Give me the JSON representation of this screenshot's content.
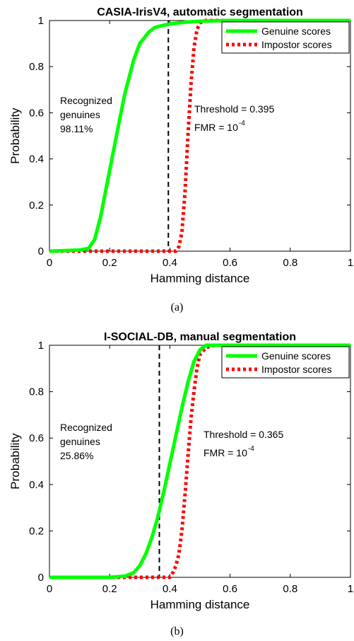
{
  "chart_data": [
    {
      "type": "line",
      "title": "CASIA-IrisV4, automatic segmentation",
      "xlabel": "Hamming distance",
      "ylabel": "Probability",
      "xlim": [
        0,
        1
      ],
      "ylim": [
        0,
        1
      ],
      "xticks": [
        "0",
        "0.2",
        "0.4",
        "0.6",
        "0.8",
        "1"
      ],
      "yticks": [
        "0",
        "0.2",
        "0.4",
        "0.6",
        "0.8",
        "1"
      ],
      "grid": false,
      "legend_position": "top-right",
      "series": [
        {
          "name": "Genuine scores",
          "color": "#00ff00",
          "style": "solid",
          "x": [
            0.0,
            0.05,
            0.1,
            0.13,
            0.15,
            0.17,
            0.2,
            0.23,
            0.25,
            0.28,
            0.3,
            0.33,
            0.35,
            0.38,
            0.4,
            0.45,
            0.5,
            0.6,
            1.0
          ],
          "y": [
            0.0,
            0.002,
            0.005,
            0.012,
            0.05,
            0.15,
            0.35,
            0.55,
            0.68,
            0.83,
            0.9,
            0.95,
            0.97,
            0.98,
            0.985,
            0.993,
            0.997,
            1.0,
            1.0
          ]
        },
        {
          "name": "Impostor scores",
          "color": "#ff0000",
          "style": "dotted",
          "x": [
            0.0,
            0.42,
            0.43,
            0.44,
            0.45,
            0.46,
            0.47,
            0.48,
            0.49,
            0.5,
            0.52,
            1.0
          ],
          "y": [
            0.0,
            0.0,
            0.02,
            0.08,
            0.25,
            0.5,
            0.72,
            0.88,
            0.96,
            0.99,
            1.0,
            1.0
          ]
        }
      ],
      "threshold_line": {
        "x": 0.395,
        "style": "dashed",
        "color": "#000000"
      },
      "annotations": {
        "recognized_lines": [
          "Recognized",
          "genuines",
          "98.11%"
        ],
        "threshold_text": "Threshold = 0.395",
        "fmr_text": "FMR = 10",
        "fmr_exponent": "-4"
      },
      "caption": "(a)"
    },
    {
      "type": "line",
      "title": "I-SOCIAL-DB, manual segmentation",
      "xlabel": "Hamming distance",
      "ylabel": "Probability",
      "xlim": [
        0,
        1
      ],
      "ylim": [
        0,
        1
      ],
      "xticks": [
        "0",
        "0.2",
        "0.4",
        "0.6",
        "0.8",
        "1"
      ],
      "yticks": [
        "0",
        "0.2",
        "0.4",
        "0.6",
        "0.8",
        "1"
      ],
      "grid": false,
      "legend_position": "top-right",
      "series": [
        {
          "name": "Genuine scores",
          "color": "#00ff00",
          "style": "solid",
          "x": [
            0.0,
            0.2,
            0.25,
            0.28,
            0.3,
            0.32,
            0.34,
            0.36,
            0.38,
            0.4,
            0.42,
            0.44,
            0.46,
            0.48,
            0.5,
            0.52,
            1.0
          ],
          "y": [
            0.0,
            0.0,
            0.005,
            0.02,
            0.05,
            0.1,
            0.17,
            0.26,
            0.37,
            0.49,
            0.61,
            0.73,
            0.84,
            0.93,
            0.98,
            1.0,
            1.0
          ]
        },
        {
          "name": "Impostor scores",
          "color": "#ff0000",
          "style": "dotted",
          "x": [
            0.0,
            0.4,
            0.41,
            0.42,
            0.43,
            0.44,
            0.45,
            0.46,
            0.47,
            0.48,
            0.49,
            0.5,
            0.52,
            0.55,
            1.0
          ],
          "y": [
            0.0,
            0.0,
            0.02,
            0.05,
            0.1,
            0.2,
            0.35,
            0.52,
            0.68,
            0.8,
            0.9,
            0.96,
            0.99,
            1.0,
            1.0
          ]
        }
      ],
      "threshold_line": {
        "x": 0.365,
        "style": "dashed",
        "color": "#000000"
      },
      "annotations": {
        "recognized_lines": [
          "Recognized",
          "genuines",
          "25.86%"
        ],
        "threshold_text": "Threshold = 0.365",
        "fmr_text": "FMR = 10",
        "fmr_exponent": "-4"
      },
      "caption": "(b)"
    }
  ]
}
